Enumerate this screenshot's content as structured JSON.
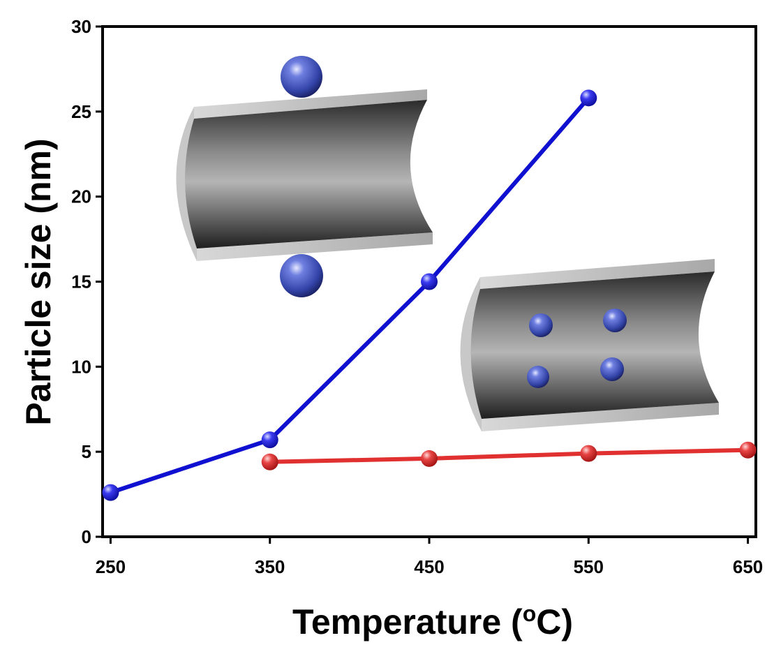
{
  "chart_data": {
    "type": "line",
    "title": "",
    "xlabel": "Temperature (",
    "xlabel_superscript": "o",
    "xlabel_suffix": "C)",
    "ylabel": "Particle size (nm)",
    "xlim": [
      245,
      655
    ],
    "ylim": [
      0,
      30
    ],
    "x_ticks": [
      250,
      350,
      450,
      550,
      650
    ],
    "y_ticks": [
      0,
      5,
      10,
      15,
      20,
      25,
      30
    ],
    "grid": false,
    "legend": "none",
    "series": [
      {
        "color": "#1010d0",
        "marker_color": "#2626e0",
        "x": [
          250,
          350,
          450,
          550
        ],
        "values": [
          2.6,
          5.7,
          15.0,
          25.8
        ]
      },
      {
        "color": "#e03030",
        "marker_color": "#e84040",
        "x": [
          350,
          450,
          550,
          650
        ],
        "values": [
          4.4,
          4.6,
          4.9,
          5.1
        ]
      }
    ],
    "insets": [
      {
        "name": "tube-with-large-outer-particles",
        "particle_color": "#4a5ac0",
        "tube_color": "#8a8a8a"
      },
      {
        "name": "tube-with-small-inner-particles",
        "particle_color": "#4a5ac0",
        "tube_color": "#8a8a8a"
      }
    ]
  }
}
